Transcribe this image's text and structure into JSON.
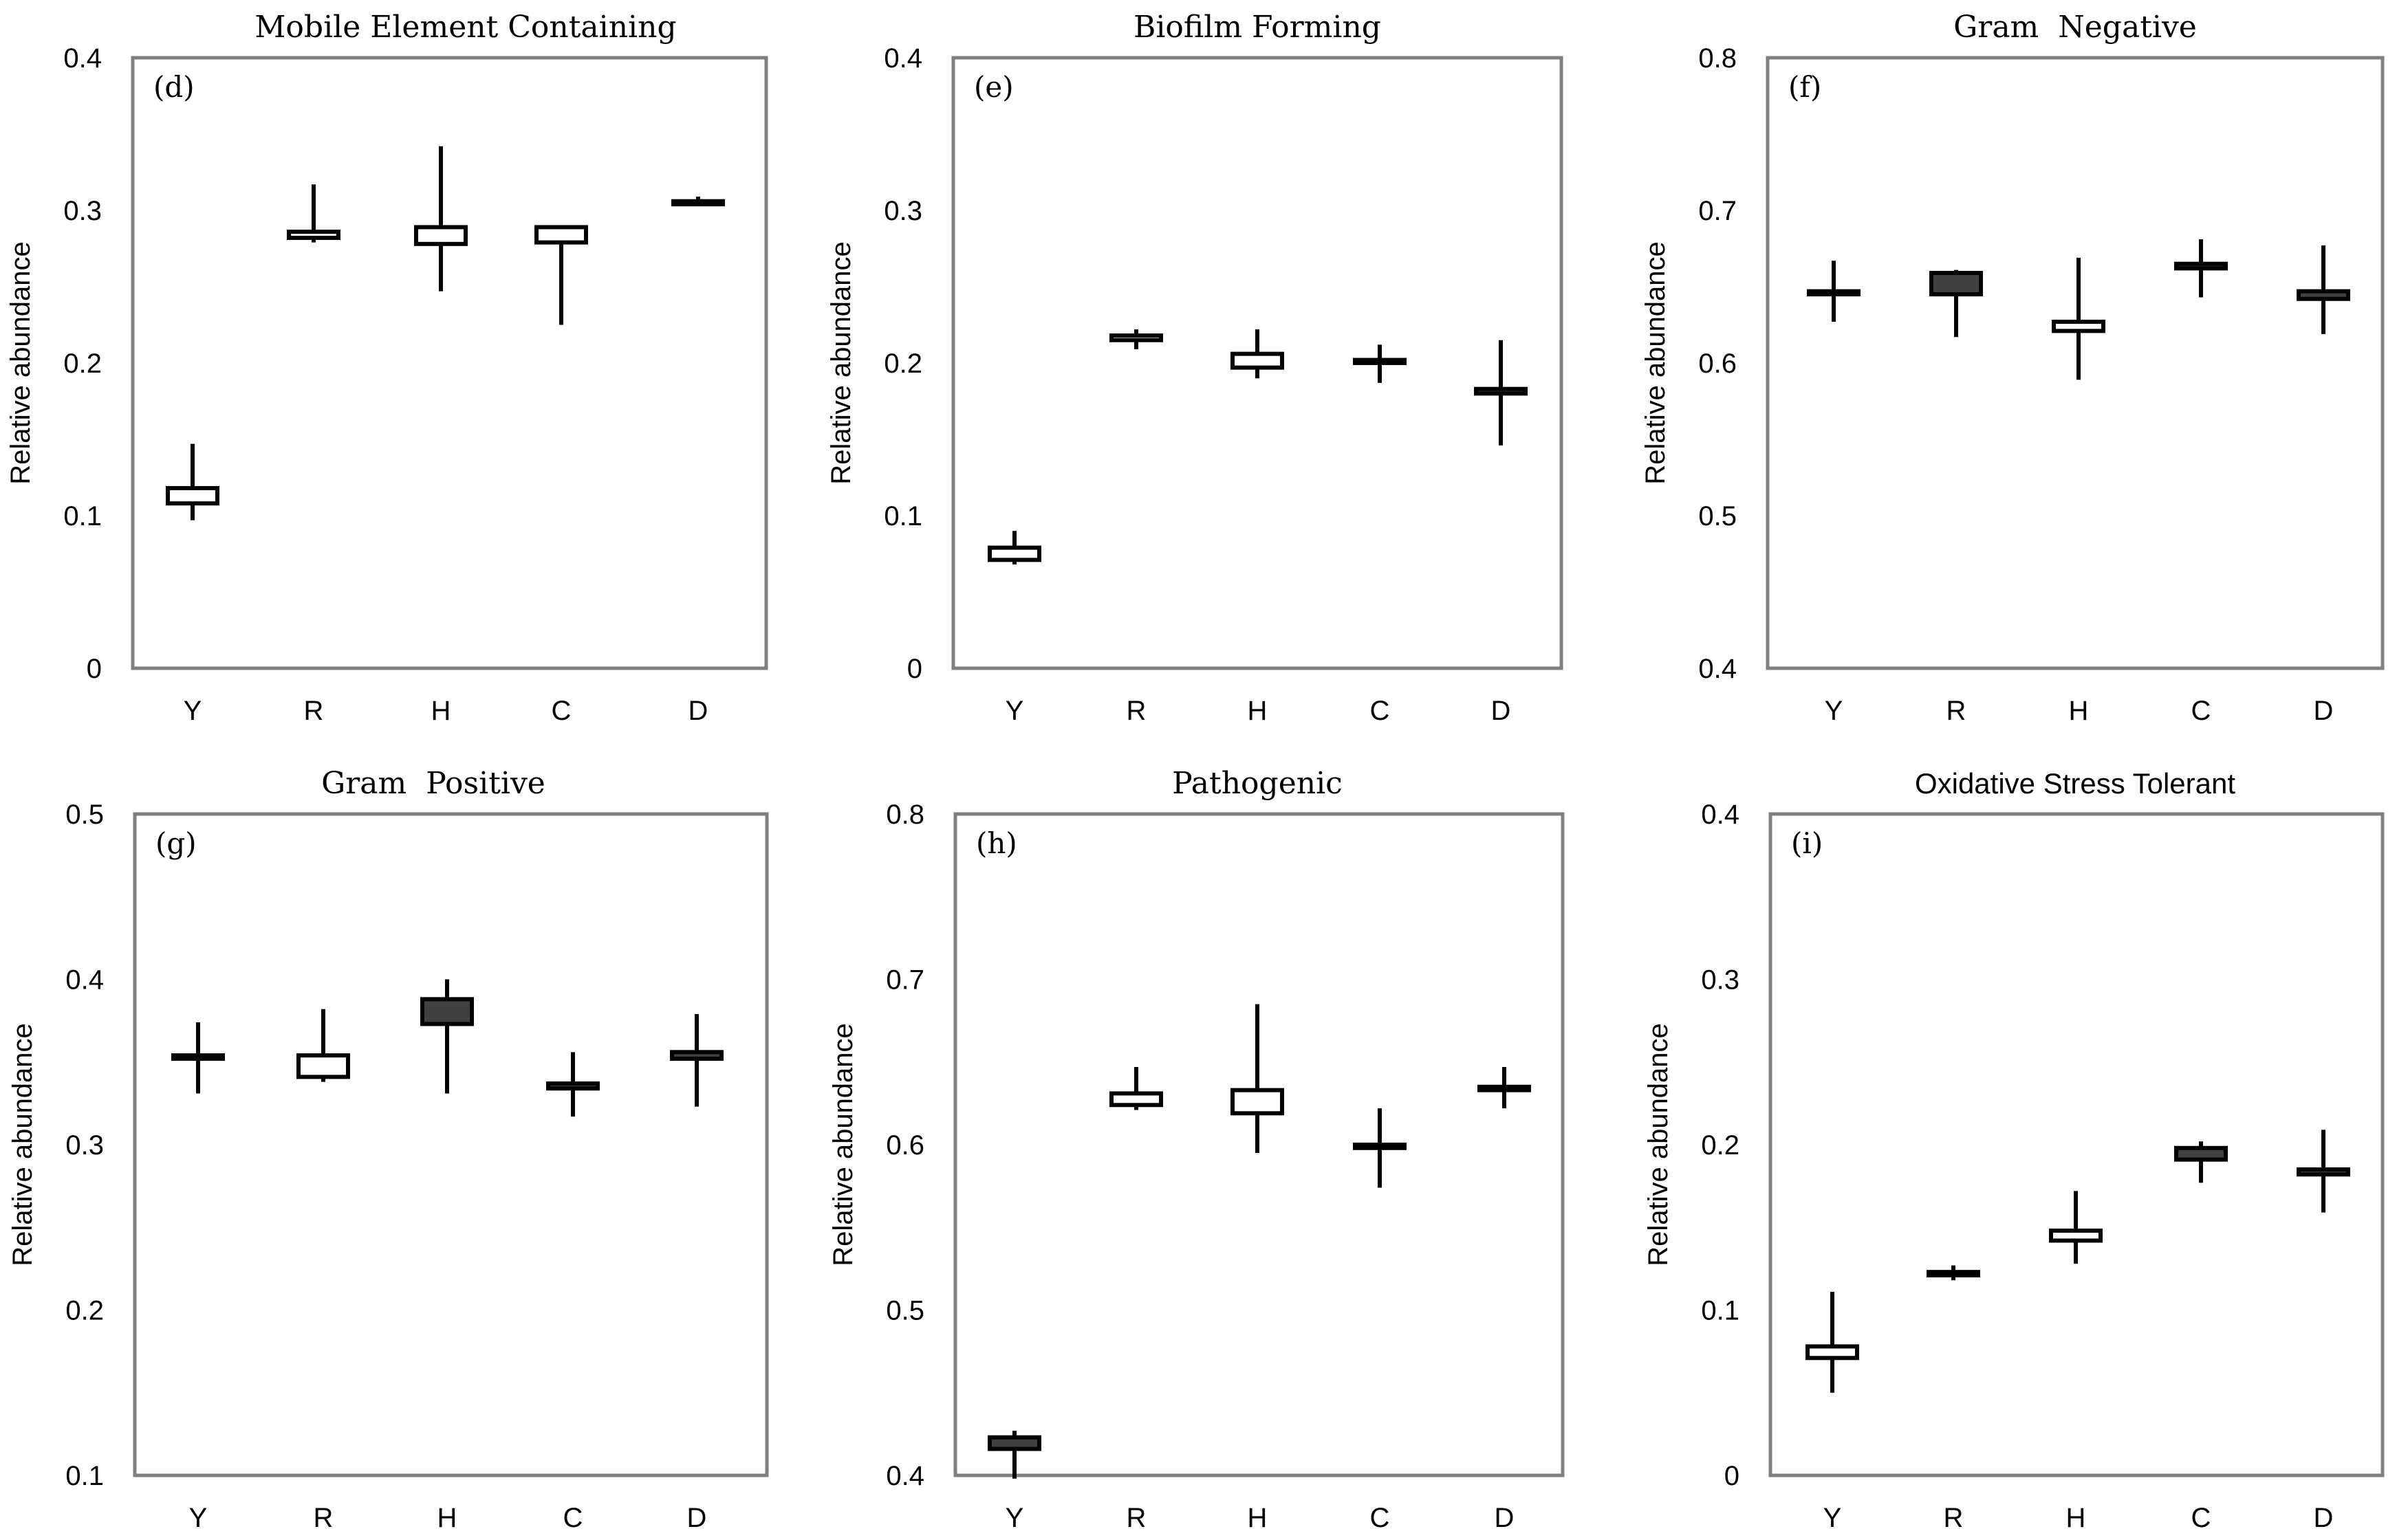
{
  "colors": {
    "frame": "#7f7f7f",
    "ink": "#000000",
    "dark_fill": "#404040",
    "light_fill": "#ffffff"
  },
  "chart_data": [
    {
      "type": "box",
      "panel": "(d)",
      "title": "Mobile Element Containing",
      "title_style": "serif",
      "ylabel": "Relative abundance",
      "categories": [
        "Y",
        "R",
        "H",
        "C",
        "D"
      ],
      "ylim": [
        0,
        0.4
      ],
      "yticks": [
        "0",
        "0.1",
        "0.2",
        "0.3",
        "0.4"
      ],
      "boxes": [
        {
          "min": 0.097,
          "q1": 0.108,
          "q3": 0.118,
          "max": 0.147,
          "fill": "light"
        },
        {
          "min": 0.279,
          "q1": 0.282,
          "q3": 0.286,
          "max": 0.317,
          "fill": "light"
        },
        {
          "min": 0.247,
          "q1": 0.278,
          "q3": 0.289,
          "max": 0.342,
          "fill": "light"
        },
        {
          "min": 0.225,
          "q1": 0.279,
          "q3": 0.289,
          "max": 0.289,
          "fill": "light"
        },
        {
          "min": 0.303,
          "q1": 0.304,
          "q3": 0.306,
          "max": 0.309,
          "fill": "dark"
        }
      ]
    },
    {
      "type": "box",
      "panel": "(e)",
      "title": "Biofilm Forming",
      "title_style": "serif",
      "ylabel": "Relative abundance",
      "categories": [
        "Y",
        "R",
        "H",
        "C",
        "D"
      ],
      "ylim": [
        0,
        0.4
      ],
      "yticks": [
        "0",
        "0.1",
        "0.2",
        "0.3",
        "0.4"
      ],
      "boxes": [
        {
          "min": 0.068,
          "q1": 0.071,
          "q3": 0.079,
          "max": 0.09,
          "fill": "light"
        },
        {
          "min": 0.209,
          "q1": 0.215,
          "q3": 0.218,
          "max": 0.222,
          "fill": "light"
        },
        {
          "min": 0.19,
          "q1": 0.197,
          "q3": 0.206,
          "max": 0.222,
          "fill": "light"
        },
        {
          "min": 0.187,
          "q1": 0.2,
          "q3": 0.202,
          "max": 0.212,
          "fill": "dark"
        },
        {
          "min": 0.146,
          "q1": 0.18,
          "q3": 0.183,
          "max": 0.215,
          "fill": "dark"
        }
      ]
    },
    {
      "type": "box",
      "panel": "(f)",
      "title": "Gram  Negative",
      "title_style": "serif",
      "ylabel": "Relative abundance",
      "categories": [
        "Y",
        "R",
        "H",
        "C",
        "D"
      ],
      "ylim": [
        0.4,
        0.8
      ],
      "yticks": [
        "0.4",
        "0.5",
        "0.6",
        "0.7",
        "0.8"
      ],
      "boxes": [
        {
          "min": 0.627,
          "q1": 0.645,
          "q3": 0.647,
          "max": 0.667,
          "fill": "dark"
        },
        {
          "min": 0.617,
          "q1": 0.645,
          "q3": 0.659,
          "max": 0.661,
          "fill": "dark"
        },
        {
          "min": 0.589,
          "q1": 0.621,
          "q3": 0.627,
          "max": 0.669,
          "fill": "light"
        },
        {
          "min": 0.643,
          "q1": 0.662,
          "q3": 0.665,
          "max": 0.681,
          "fill": "dark"
        },
        {
          "min": 0.619,
          "q1": 0.642,
          "q3": 0.647,
          "max": 0.677,
          "fill": "dark"
        }
      ]
    },
    {
      "type": "box",
      "panel": "(g)",
      "title": "Gram  Positive",
      "title_style": "serif",
      "ylabel": "Relative abundance",
      "categories": [
        "Y",
        "R",
        "H",
        "C",
        "D"
      ],
      "ylim": [
        0.1,
        0.5
      ],
      "yticks": [
        "0.1",
        "0.2",
        "0.3",
        "0.4",
        "0.5"
      ],
      "boxes": [
        {
          "min": 0.331,
          "q1": 0.352,
          "q3": 0.354,
          "max": 0.374,
          "fill": "dark"
        },
        {
          "min": 0.338,
          "q1": 0.341,
          "q3": 0.354,
          "max": 0.382,
          "fill": "light"
        },
        {
          "min": 0.331,
          "q1": 0.373,
          "q3": 0.388,
          "max": 0.4,
          "fill": "dark"
        },
        {
          "min": 0.317,
          "q1": 0.334,
          "q3": 0.337,
          "max": 0.356,
          "fill": "dark"
        },
        {
          "min": 0.323,
          "q1": 0.352,
          "q3": 0.356,
          "max": 0.379,
          "fill": "dark"
        }
      ]
    },
    {
      "type": "box",
      "panel": "(h)",
      "title": "Pathogenic",
      "title_style": "serif",
      "ylabel": "Relative abundance",
      "categories": [
        "Y",
        "R",
        "H",
        "C",
        "D"
      ],
      "ylim": [
        0.4,
        0.8
      ],
      "yticks": [
        "0.4",
        "0.5",
        "0.6",
        "0.7",
        "0.8"
      ],
      "boxes": [
        {
          "min": 0.398,
          "q1": 0.416,
          "q3": 0.423,
          "max": 0.427,
          "fill": "dark"
        },
        {
          "min": 0.621,
          "q1": 0.624,
          "q3": 0.631,
          "max": 0.647,
          "fill": "light"
        },
        {
          "min": 0.595,
          "q1": 0.619,
          "q3": 0.633,
          "max": 0.685,
          "fill": "light"
        },
        {
          "min": 0.574,
          "q1": 0.598,
          "q3": 0.6,
          "max": 0.622,
          "fill": "dark"
        },
        {
          "min": 0.622,
          "q1": 0.633,
          "q3": 0.635,
          "max": 0.647,
          "fill": "dark"
        }
      ]
    },
    {
      "type": "box",
      "panel": "(i)",
      "title": "Oxidative Stress Tolerant",
      "title_style": "sans",
      "ylabel": "Relative abundance",
      "categories": [
        "Y",
        "R",
        "H",
        "C",
        "D"
      ],
      "ylim": [
        0,
        0.4
      ],
      "yticks": [
        "0",
        "0.1",
        "0.2",
        "0.3",
        "0.4"
      ],
      "boxes": [
        {
          "min": 0.05,
          "q1": 0.071,
          "q3": 0.078,
          "max": 0.111,
          "fill": "light"
        },
        {
          "min": 0.118,
          "q1": 0.121,
          "q3": 0.123,
          "max": 0.127,
          "fill": "dark"
        },
        {
          "min": 0.128,
          "q1": 0.142,
          "q3": 0.148,
          "max": 0.172,
          "fill": "light"
        },
        {
          "min": 0.177,
          "q1": 0.191,
          "q3": 0.198,
          "max": 0.202,
          "fill": "dark"
        },
        {
          "min": 0.159,
          "q1": 0.182,
          "q3": 0.185,
          "max": 0.209,
          "fill": "dark"
        }
      ]
    }
  ]
}
